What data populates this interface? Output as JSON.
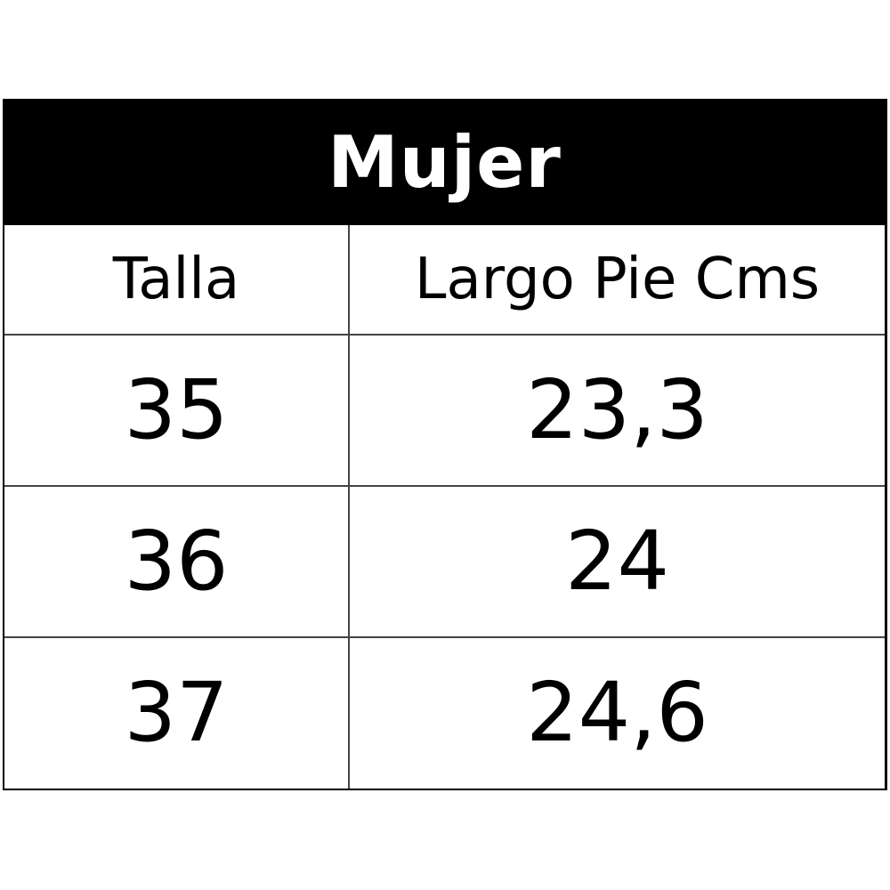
{
  "table": {
    "title": "Mujer",
    "headers": [
      "Talla",
      "Largo Pie Cms"
    ],
    "rows": [
      [
        "35",
        "23,3"
      ],
      [
        "36",
        "24"
      ],
      [
        "37",
        "24,6"
      ]
    ]
  }
}
